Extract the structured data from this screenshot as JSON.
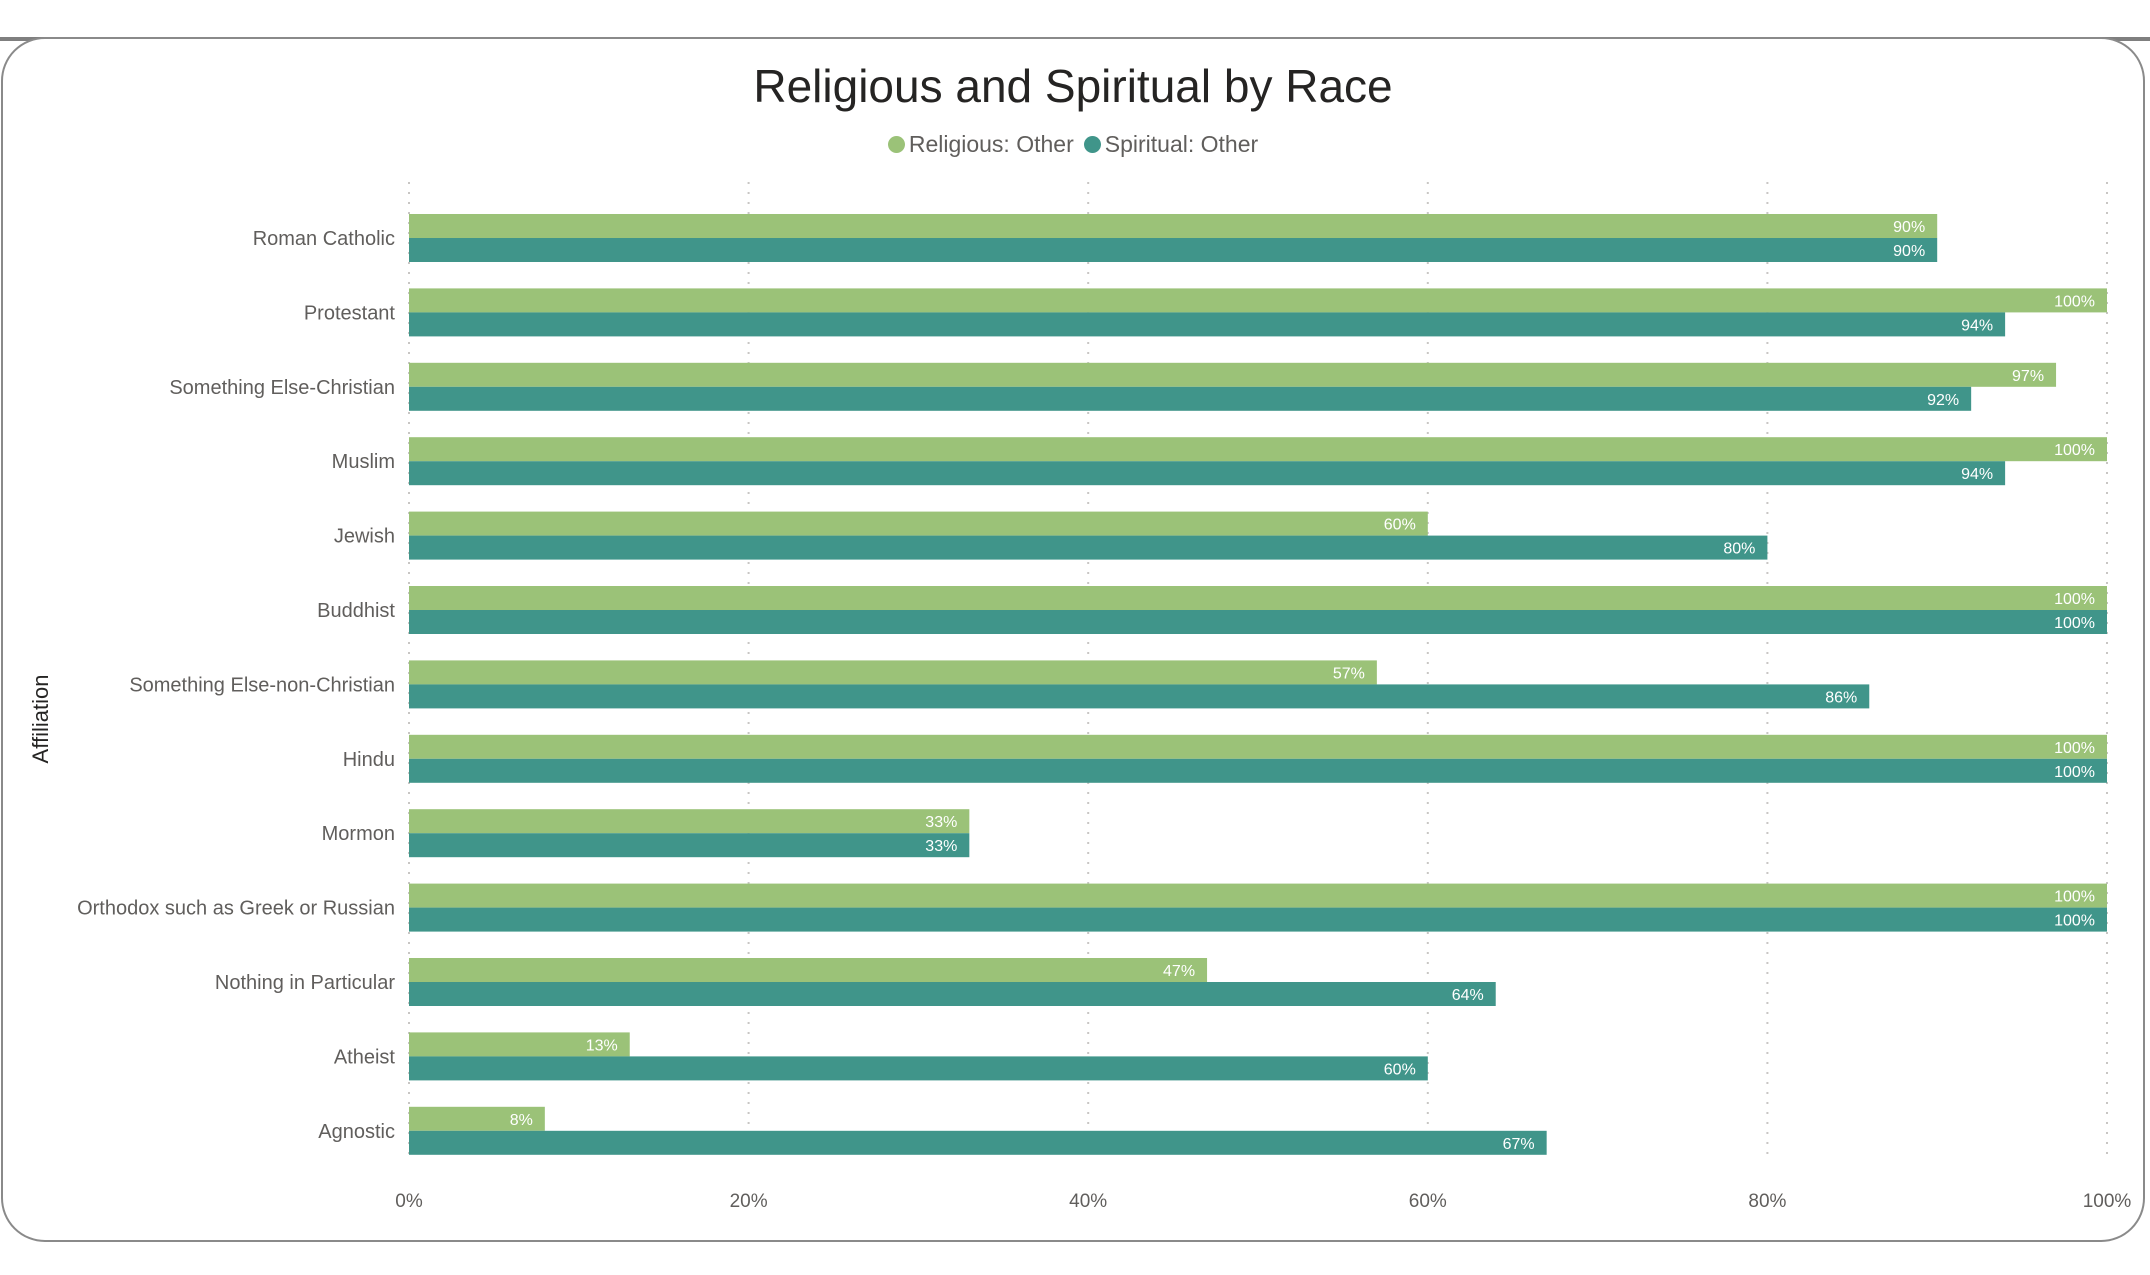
{
  "chart_data": {
    "type": "bar",
    "orientation": "horizontal",
    "title": "Religious and Spiritual by Race",
    "ylabel": "Affiliation",
    "xlabel": "",
    "xlim": [
      0,
      100
    ],
    "x_ticks": [
      "0%",
      "20%",
      "40%",
      "60%",
      "80%",
      "100%"
    ],
    "legend_position": "top-center",
    "grid": "vertical-dotted",
    "categories": [
      "Roman Catholic",
      "Protestant",
      "Something Else-Christian",
      "Muslim",
      "Jewish",
      "Buddhist",
      "Something Else-non-Christian",
      "Hindu",
      "Mormon",
      "Orthodox such as Greek or Russian",
      "Nothing in Particular",
      "Atheist",
      "Agnostic"
    ],
    "series": [
      {
        "name": "Religious: Other",
        "color": "#9bc278",
        "values": [
          90,
          100,
          97,
          100,
          60,
          100,
          57,
          100,
          33,
          100,
          47,
          13,
          8
        ],
        "labels": [
          "90%",
          "100%",
          "97%",
          "100%",
          "60%",
          "100%",
          "57%",
          "100%",
          "33%",
          "100%",
          "47%",
          "13%",
          "8%"
        ]
      },
      {
        "name": "Spiritual: Other",
        "color": "#40958a",
        "values": [
          90,
          94,
          92,
          94,
          80,
          100,
          86,
          100,
          33,
          100,
          64,
          60,
          67
        ],
        "labels": [
          "90%",
          "94%",
          "92%",
          "94%",
          "80%",
          "100%",
          "86%",
          "100%",
          "33%",
          "100%",
          "64%",
          "60%",
          "67%"
        ]
      }
    ]
  }
}
